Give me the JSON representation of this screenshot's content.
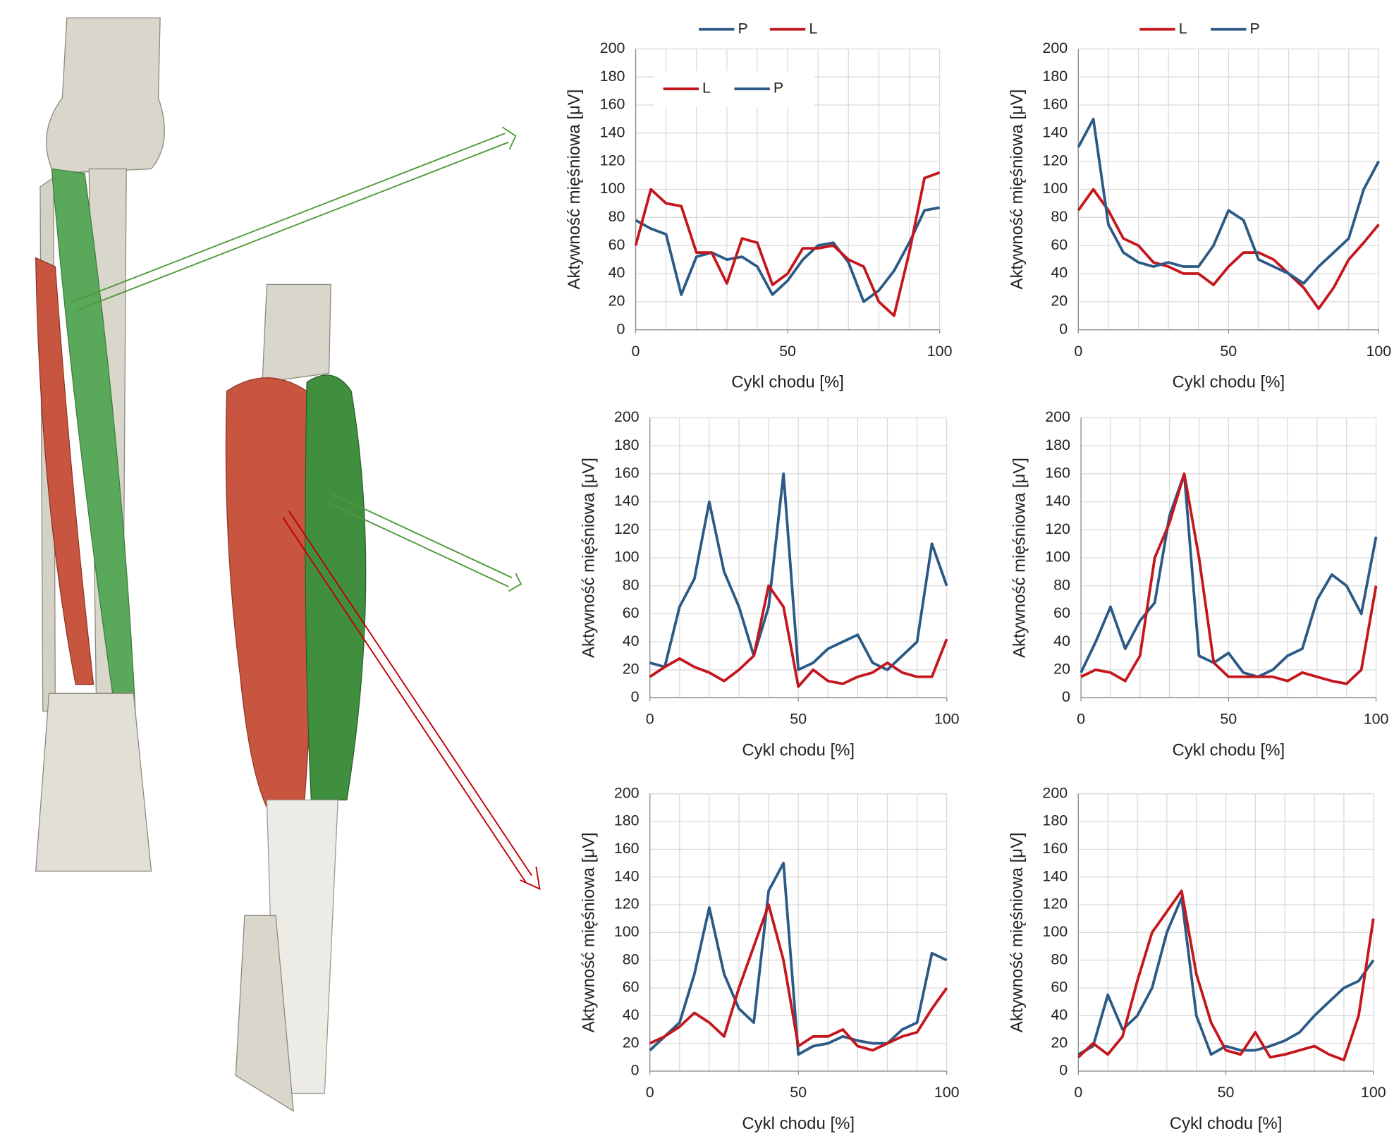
{
  "chart_data": [
    {
      "type": "line",
      "xlabel": "Cykl chodu [%]",
      "ylabel": "Aktywność mięśniowa [μV]",
      "x": [
        0,
        5,
        10,
        15,
        20,
        25,
        30,
        35,
        40,
        45,
        50,
        55,
        60,
        65,
        70,
        75,
        80,
        85,
        90,
        95,
        100
      ],
      "series": [
        {
          "name": "P",
          "color": "#2b5a87",
          "values": [
            78,
            72,
            68,
            25,
            52,
            55,
            50,
            52,
            45,
            25,
            35,
            50,
            60,
            62,
            48,
            20,
            28,
            42,
            62,
            85,
            87
          ]
        },
        {
          "name": "L",
          "color": "#c4161c",
          "values": [
            60,
            100,
            90,
            88,
            55,
            55,
            33,
            65,
            62,
            32,
            40,
            58,
            58,
            60,
            50,
            45,
            20,
            10,
            55,
            108,
            112
          ]
        }
      ],
      "xlim": [
        0,
        100
      ],
      "ylim": [
        0,
        200
      ],
      "xticks": [
        0,
        50,
        100
      ],
      "yticks": [
        0,
        20,
        40,
        60,
        80,
        100,
        120,
        140,
        160,
        180,
        200
      ],
      "xgrid": [
        0,
        10,
        20,
        30,
        40,
        50,
        60,
        70,
        80,
        90,
        100
      ],
      "grid": true,
      "legend": [
        "top",
        "inside-top"
      ]
    },
    {
      "type": "line",
      "xlabel": "Cykl chodu [%]",
      "ylabel": "Aktywność mięśniowa [μV]",
      "x": [
        0,
        5,
        10,
        15,
        20,
        25,
        30,
        35,
        40,
        45,
        50,
        55,
        60,
        65,
        70,
        75,
        80,
        85,
        90,
        95,
        100
      ],
      "series": [
        {
          "name": "L",
          "color": "#c4161c",
          "values": [
            85,
            100,
            85,
            65,
            60,
            48,
            45,
            40,
            40,
            32,
            45,
            55,
            55,
            50,
            40,
            30,
            15,
            30,
            50,
            62,
            75
          ]
        },
        {
          "name": "P",
          "color": "#2b5a87",
          "values": [
            130,
            150,
            75,
            55,
            48,
            45,
            48,
            45,
            45,
            60,
            85,
            78,
            50,
            45,
            40,
            33,
            45,
            55,
            65,
            100,
            120
          ]
        }
      ],
      "xlim": [
        0,
        100
      ],
      "ylim": [
        0,
        200
      ],
      "xticks": [
        0,
        50,
        100
      ],
      "yticks": [
        0,
        20,
        40,
        60,
        80,
        100,
        120,
        140,
        160,
        180,
        200
      ],
      "xgrid": [
        0,
        10,
        20,
        30,
        40,
        50,
        60,
        70,
        80,
        90,
        100
      ],
      "grid": true,
      "legend": [
        "top"
      ]
    },
    {
      "type": "line",
      "xlabel": "Cykl chodu [%]",
      "ylabel": "Aktywność mięśniowa [μV]",
      "x": [
        0,
        5,
        10,
        15,
        20,
        25,
        30,
        35,
        40,
        45,
        50,
        55,
        60,
        65,
        70,
        75,
        80,
        85,
        90,
        95,
        100
      ],
      "series": [
        {
          "name": "P",
          "color": "#2b5a87",
          "values": [
            25,
            22,
            65,
            85,
            140,
            90,
            65,
            30,
            65,
            160,
            20,
            25,
            35,
            40,
            45,
            25,
            20,
            30,
            40,
            110,
            80
          ]
        },
        {
          "name": "L",
          "color": "#c4161c",
          "values": [
            15,
            22,
            28,
            22,
            18,
            12,
            20,
            30,
            80,
            65,
            8,
            20,
            12,
            10,
            15,
            18,
            25,
            18,
            15,
            15,
            42
          ]
        }
      ],
      "xlim": [
        0,
        100
      ],
      "ylim": [
        0,
        200
      ],
      "xticks": [
        0,
        50,
        100
      ],
      "yticks": [
        0,
        20,
        40,
        60,
        80,
        100,
        120,
        140,
        160,
        180,
        200
      ],
      "xgrid": [
        0,
        10,
        20,
        30,
        40,
        50,
        60,
        70,
        80,
        90,
        100
      ],
      "grid": true
    },
    {
      "type": "line",
      "xlabel": "Cykl chodu [%]",
      "ylabel": "Aktywność mięśniowa [μV]",
      "x": [
        0,
        5,
        10,
        15,
        20,
        25,
        30,
        35,
        40,
        45,
        50,
        55,
        60,
        65,
        70,
        75,
        80,
        85,
        90,
        95,
        100
      ],
      "series": [
        {
          "name": "P",
          "color": "#2b5a87",
          "values": [
            18,
            40,
            65,
            35,
            55,
            68,
            130,
            160,
            30,
            25,
            32,
            18,
            15,
            20,
            30,
            35,
            70,
            88,
            80,
            60,
            115
          ]
        },
        {
          "name": "L",
          "color": "#c4161c",
          "values": [
            15,
            20,
            18,
            12,
            30,
            100,
            125,
            160,
            100,
            25,
            15,
            15,
            15,
            15,
            12,
            18,
            15,
            12,
            10,
            20,
            80
          ]
        }
      ],
      "xlim": [
        0,
        100
      ],
      "ylim": [
        0,
        200
      ],
      "xticks": [
        0,
        50,
        100
      ],
      "yticks": [
        0,
        20,
        40,
        60,
        80,
        100,
        120,
        140,
        160,
        180,
        200
      ],
      "xgrid": [
        0,
        10,
        20,
        30,
        40,
        50,
        60,
        70,
        80,
        90,
        100
      ],
      "grid": true
    },
    {
      "type": "line",
      "xlabel": "Cykl chodu [%]",
      "ylabel": "Aktywność mięśniowa [μV]",
      "x": [
        0,
        5,
        10,
        15,
        20,
        25,
        30,
        35,
        40,
        45,
        50,
        55,
        60,
        65,
        70,
        75,
        80,
        85,
        90,
        95,
        100
      ],
      "series": [
        {
          "name": "P",
          "color": "#2b5a87",
          "values": [
            15,
            25,
            35,
            70,
            118,
            70,
            45,
            35,
            130,
            150,
            12,
            18,
            20,
            25,
            22,
            20,
            20,
            30,
            35,
            85,
            80
          ]
        },
        {
          "name": "L",
          "color": "#c4161c",
          "values": [
            20,
            25,
            32,
            42,
            35,
            25,
            60,
            90,
            120,
            80,
            18,
            25,
            25,
            30,
            18,
            15,
            20,
            25,
            28,
            45,
            60
          ]
        }
      ],
      "xlim": [
        0,
        100
      ],
      "ylim": [
        0,
        200
      ],
      "xticks": [
        0,
        50,
        100
      ],
      "yticks": [
        0,
        20,
        40,
        60,
        80,
        100,
        120,
        140,
        160,
        180,
        200
      ],
      "xgrid": [
        0,
        10,
        20,
        30,
        40,
        50,
        60,
        70,
        80,
        90,
        100
      ],
      "grid": true
    },
    {
      "type": "line",
      "xlabel": "Cykl chodu [%]",
      "ylabel": "Aktywność mięśniowa [μV]",
      "x": [
        0,
        5,
        10,
        15,
        20,
        25,
        30,
        35,
        40,
        45,
        50,
        55,
        60,
        65,
        70,
        75,
        80,
        85,
        90,
        95,
        100
      ],
      "series": [
        {
          "name": "P",
          "color": "#2b5a87",
          "values": [
            12,
            18,
            55,
            30,
            40,
            60,
            100,
            125,
            40,
            12,
            18,
            15,
            15,
            18,
            22,
            28,
            40,
            50,
            60,
            65,
            80
          ]
        },
        {
          "name": "L",
          "color": "#c4161c",
          "values": [
            10,
            20,
            12,
            25,
            65,
            100,
            115,
            130,
            70,
            35,
            15,
            12,
            28,
            10,
            12,
            15,
            18,
            12,
            8,
            40,
            110
          ]
        }
      ],
      "xlim": [
        0,
        100
      ],
      "ylim": [
        0,
        200
      ],
      "xticks": [
        0,
        50,
        100
      ],
      "yticks": [
        0,
        20,
        40,
        60,
        80,
        100,
        120,
        140,
        160,
        180,
        200
      ],
      "xgrid": [
        0,
        10,
        20,
        30,
        40,
        50,
        60,
        70,
        80,
        90,
        100
      ],
      "grid": true
    }
  ]
}
